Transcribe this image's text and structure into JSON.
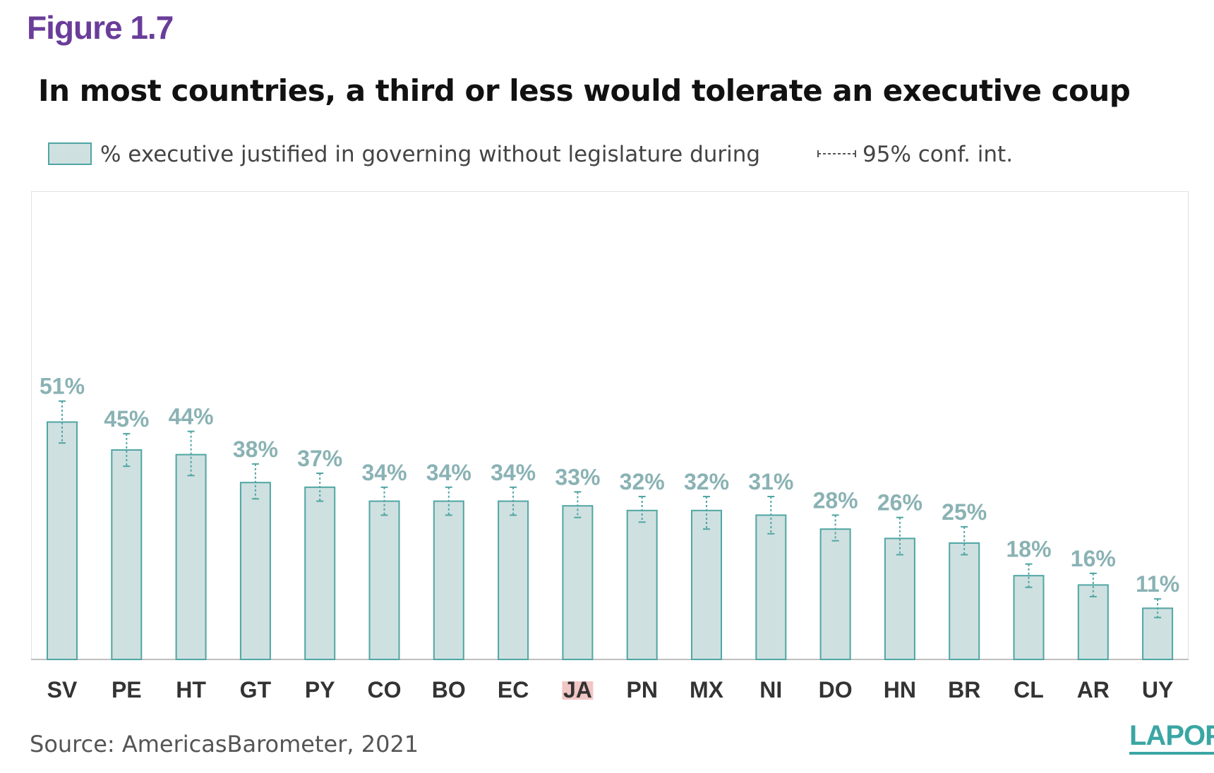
{
  "figure_label": "Figure 1.7",
  "brand": "LAPOP",
  "source": "Source: AmericasBarometer, 2021",
  "colors": {
    "bar_fill": "#cfe0e1",
    "bar_stroke": "#4fa6a3",
    "value_label": "#8ab2b4",
    "ci": "#4fa6a3",
    "highlight": "#f2c6c6",
    "title_purple": "#6a3d9a"
  },
  "chart_data": {
    "type": "bar",
    "title": "In most countries, a third or less would tolerate an executive coup",
    "legend": {
      "bar_label": "% executive justified in governing without legislature during",
      "ci_label": "95% conf. int.",
      "placement": "top"
    },
    "categories": [
      "SV",
      "PE",
      "HT",
      "GT",
      "PY",
      "CO",
      "BO",
      "EC",
      "JA",
      "PN",
      "MX",
      "NI",
      "DO",
      "HN",
      "BR",
      "CL",
      "AR",
      "UY"
    ],
    "values": [
      51,
      45,
      44,
      38,
      37,
      34,
      34,
      34,
      33,
      32,
      32,
      31,
      28,
      26,
      25,
      18,
      16,
      11
    ],
    "value_labels": [
      "51%",
      "45%",
      "44%",
      "38%",
      "37%",
      "34%",
      "34%",
      "34%",
      "33%",
      "32%",
      "32%",
      "31%",
      "28%",
      "26%",
      "25%",
      "18%",
      "16%",
      "11%"
    ],
    "ci_low": [
      46.5,
      41.5,
      39.5,
      34.5,
      34.0,
      31.0,
      31.0,
      31.0,
      30.5,
      29.5,
      28.0,
      27.0,
      25.5,
      22.5,
      22.5,
      15.5,
      13.5,
      9.0
    ],
    "ci_high": [
      55.5,
      48.5,
      49.0,
      42.0,
      40.0,
      37.0,
      37.0,
      37.0,
      36.0,
      35.0,
      35.0,
      35.0,
      31.0,
      30.5,
      28.5,
      20.5,
      18.5,
      13.0
    ],
    "highlighted_category": "JA",
    "ylim": [
      0,
      100
    ],
    "grid": false,
    "xlabel": "",
    "ylabel": ""
  }
}
